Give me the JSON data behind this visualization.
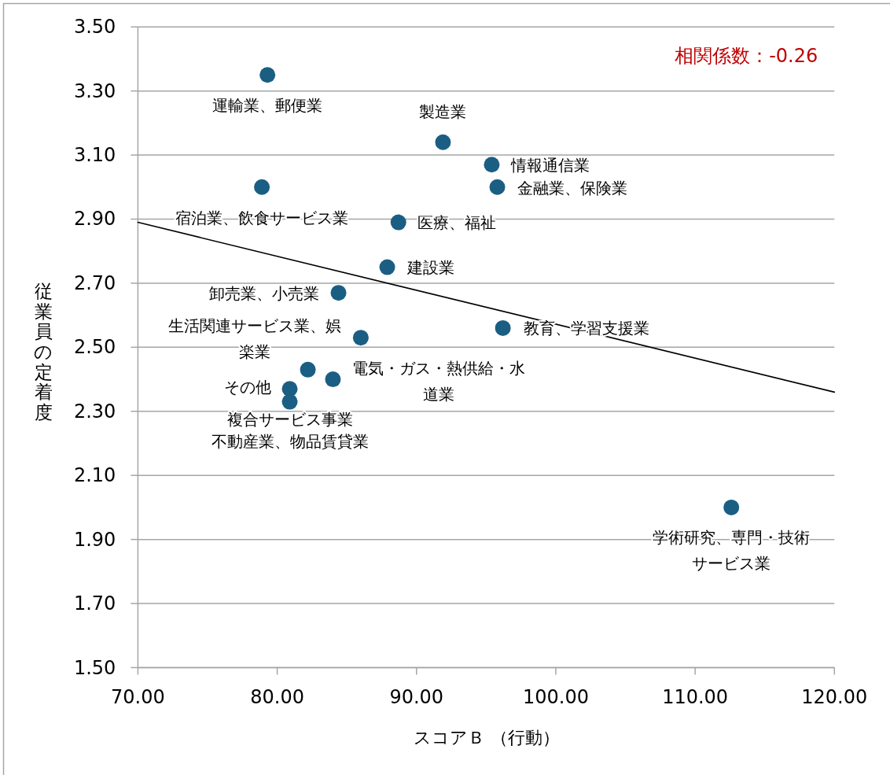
{
  "chart_data": {
    "type": "scatter",
    "xlabel": "スコアＢ （行動）",
    "ylabel": "従業員の定着度",
    "xlim": [
      70,
      120
    ],
    "xticks": [
      {
        "value": 70,
        "label": "70.00"
      },
      {
        "value": 80,
        "label": "80.00"
      },
      {
        "value": 90,
        "label": "90.00"
      },
      {
        "value": 100,
        "label": "100.00"
      },
      {
        "value": 110,
        "label": "110.00"
      },
      {
        "value": 120,
        "label": "120.00"
      }
    ],
    "ylim": [
      1.5,
      3.5
    ],
    "yticks": [
      {
        "value": 1.5,
        "label": "1.50"
      },
      {
        "value": 1.7,
        "label": "1.70"
      },
      {
        "value": 1.9,
        "label": "1.90"
      },
      {
        "value": 2.1,
        "label": "2.10"
      },
      {
        "value": 2.3,
        "label": "2.30"
      },
      {
        "value": 2.5,
        "label": "2.50"
      },
      {
        "value": 2.7,
        "label": "2.70"
      },
      {
        "value": 2.9,
        "label": "2.90"
      },
      {
        "value": 3.1,
        "label": "3.10"
      },
      {
        "value": 3.3,
        "label": "3.30"
      },
      {
        "value": 3.5,
        "label": "3.50"
      }
    ],
    "grid": "y",
    "series": [
      {
        "color": "#1b5e83",
        "marker": "circle",
        "x": [
          79.3,
          91.9,
          95.4,
          95.8,
          78.9,
          88.7,
          87.9,
          84.4,
          86.0,
          96.2,
          84.0,
          82.2,
          80.9,
          80.9,
          112.6
        ],
        "values": [
          3.35,
          3.14,
          3.07,
          3.0,
          3.0,
          2.89,
          2.75,
          2.67,
          2.53,
          2.56,
          2.4,
          2.43,
          2.37,
          2.33,
          2.0
        ]
      },
      {
        "type": "line",
        "color": "#000000",
        "x": [
          70,
          120
        ],
        "values": [
          2.89,
          2.36
        ]
      }
    ],
    "annotations": [
      "相関係数：-0.26",
      {
        "text": "運輸業、郵便業",
        "x": 79.3,
        "y": 3.35
      },
      {
        "text": "製造業",
        "x": 91.9,
        "y": 3.14
      },
      {
        "text": "情報通信業",
        "x": 95.4,
        "y": 3.07
      },
      {
        "text": "金融業、保険業",
        "x": 95.8,
        "y": 3.0
      },
      {
        "text": "宿泊業、飲食サービス業",
        "x": 78.9,
        "y": 3.0
      },
      {
        "text": "医療、福祉",
        "x": 88.7,
        "y": 2.89
      },
      {
        "text": "建設業",
        "x": 87.9,
        "y": 2.75
      },
      {
        "text": "卸売業、小売業",
        "x": 84.4,
        "y": 2.67
      },
      {
        "text": "生活関連サービス業、娯楽業",
        "x": 86.0,
        "y": 2.53
      },
      {
        "text": "教育、学習支援業",
        "x": 96.2,
        "y": 2.56
      },
      {
        "text": "電気・ガス・熱供給・水道業",
        "x": 84.0,
        "y": 2.4
      },
      {
        "text": "その他",
        "x": 82.2,
        "y": 2.43
      },
      {
        "text": "複合サービス事業",
        "x": 80.9,
        "y": 2.37
      },
      {
        "text": "不動産業、物品賃貸業",
        "x": 80.9,
        "y": 2.33
      },
      {
        "text": "学術研究、専門・技術サービス業",
        "x": 112.6,
        "y": 2.0
      }
    ]
  }
}
